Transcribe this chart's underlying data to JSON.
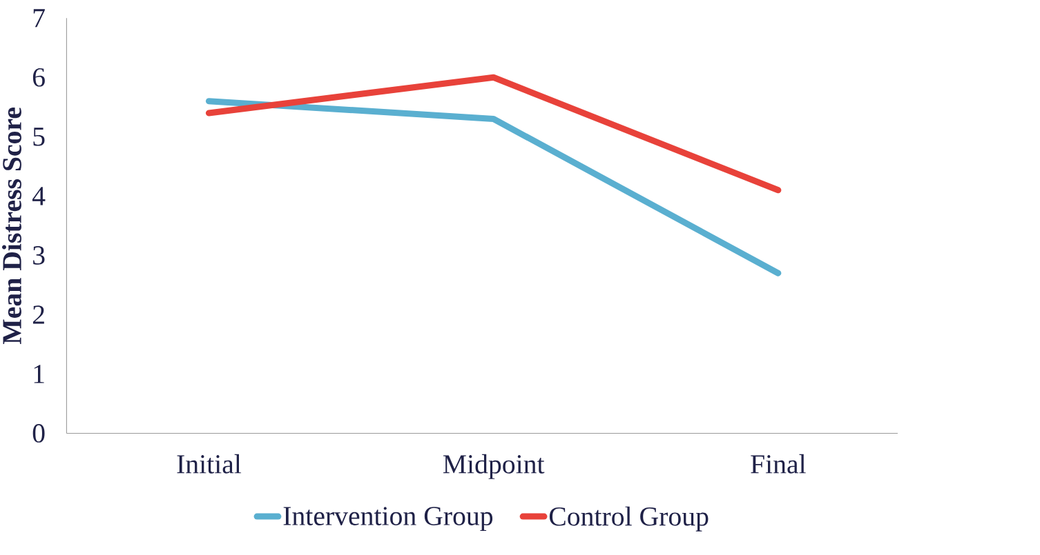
{
  "chart_data": {
    "type": "line",
    "ylabel": "Mean Distress Score",
    "categories": [
      "Initial",
      "Midpoint",
      "Final"
    ],
    "series": [
      {
        "name": "Intervention Group",
        "color": "#5aafd0",
        "values": [
          5.6,
          5.3,
          2.7
        ]
      },
      {
        "name": "Control Group",
        "color": "#e8423a",
        "values": [
          5.4,
          6.0,
          4.1
        ]
      }
    ],
    "ylim": [
      0,
      7
    ],
    "yticks": [
      0,
      1,
      2,
      3,
      4,
      5,
      6,
      7
    ],
    "legend": "bottom"
  }
}
